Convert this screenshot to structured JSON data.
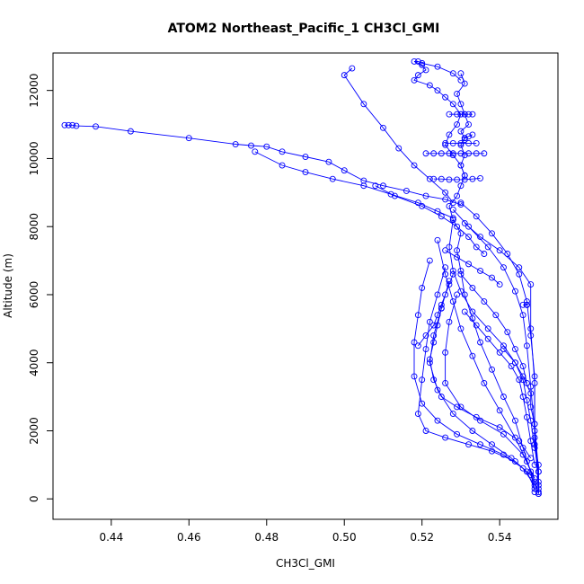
{
  "chart_data": {
    "type": "scatter",
    "title": "ATOM2 Northeast_Pacific_1 CH3Cl_GMI",
    "xlabel": "CH3Cl_GMI",
    "ylabel": "Altitude (m)",
    "xlim": [
      0.425,
      0.555
    ],
    "ylim": [
      -600,
      13100
    ],
    "x_ticks": [
      0.44,
      0.46,
      0.48,
      0.5,
      0.52,
      0.54
    ],
    "x_tick_labels": [
      "0.44",
      "0.46",
      "0.48",
      "0.50",
      "0.52",
      "0.54"
    ],
    "y_ticks": [
      0,
      2000,
      4000,
      6000,
      8000,
      10000,
      12000
    ],
    "y_tick_labels": [
      "0",
      "2000",
      "4000",
      "6000",
      "8000",
      "10000",
      "12000"
    ],
    "grid": false,
    "legend": "none",
    "point_style": "open-circle",
    "connected": true,
    "series_color": "#0000ff",
    "series": [
      {
        "x": [
          0.549,
          0.548,
          0.546,
          0.544,
          0.541,
          0.538,
          0.535,
          0.533,
          0.531,
          0.53,
          0.529,
          0.53,
          0.528,
          0.527,
          0.529,
          0.53,
          0.531,
          0.53,
          0.531,
          0.53,
          0.531,
          0.53,
          0.532,
          0.531,
          0.53,
          0.529,
          0.531,
          0.53
        ],
        "y": [
          200,
          800,
          1500,
          2300,
          3000,
          3800,
          4600,
          5300,
          6000,
          6700,
          7300,
          7800,
          8200,
          8600,
          8900,
          9200,
          9500,
          9800,
          10100,
          10400,
          10600,
          10800,
          11000,
          11300,
          11600,
          11900,
          12200,
          12500
        ]
      },
      {
        "x": [
          0.53,
          0.528,
          0.524,
          0.52,
          0.519,
          0.518,
          0.52,
          0.521,
          0.519,
          0.518,
          0.522,
          0.524,
          0.526,
          0.528,
          0.53,
          0.529,
          0.527,
          0.526,
          0.528,
          0.53,
          0.531
        ],
        "y": [
          12300,
          12500,
          12700,
          12800,
          12850,
          12850,
          12750,
          12600,
          12450,
          12300,
          12150,
          12000,
          11800,
          11600,
          11300,
          11000,
          10700,
          10400,
          10100,
          9800,
          9500
        ]
      },
      {
        "x": [
          0.502,
          0.5,
          0.505,
          0.51,
          0.514,
          0.518,
          0.522,
          0.526,
          0.528
        ],
        "y": [
          12650,
          12450,
          11600,
          10900,
          10300,
          9800,
          9400,
          9000,
          8700
        ]
      },
      {
        "x": [
          0.428,
          0.429,
          0.43,
          0.431,
          0.436,
          0.445,
          0.46,
          0.472,
          0.476,
          0.48,
          0.484,
          0.49,
          0.496,
          0.5,
          0.505,
          0.51,
          0.516,
          0.521,
          0.526,
          0.53
        ],
        "y": [
          10980,
          10980,
          10980,
          10960,
          10940,
          10800,
          10600,
          10420,
          10380,
          10350,
          10200,
          10050,
          9900,
          9650,
          9350,
          9200,
          9050,
          8900,
          8800,
          8650
        ]
      },
      {
        "x": [
          0.477,
          0.484,
          0.49,
          0.497,
          0.505,
          0.512,
          0.519,
          0.524,
          0.528
        ],
        "y": [
          10200,
          9800,
          9600,
          9400,
          9200,
          8950,
          8700,
          8450,
          8250
        ]
      },
      {
        "x": [
          0.508,
          0.513,
          0.52,
          0.525,
          0.529,
          0.532,
          0.534,
          0.536
        ],
        "y": [
          9200,
          8900,
          8600,
          8300,
          8000,
          7700,
          7400,
          7200
        ]
      },
      {
        "x": [
          0.521,
          0.523,
          0.525,
          0.527,
          0.528,
          0.53,
          0.532,
          0.534,
          0.536
        ],
        "y": [
          10150,
          10150,
          10150,
          10150,
          10150,
          10150,
          10150,
          10150,
          10150
        ]
      },
      {
        "x": [
          0.523,
          0.525,
          0.527,
          0.529,
          0.531,
          0.533,
          0.535
        ],
        "y": [
          9400,
          9400,
          9380,
          9380,
          9380,
          9400,
          9420
        ]
      },
      {
        "x": [
          0.526,
          0.528,
          0.53,
          0.532,
          0.534
        ],
        "y": [
          10450,
          10450,
          10450,
          10450,
          10450
        ]
      },
      {
        "x": [
          0.527,
          0.529,
          0.53,
          0.531,
          0.532,
          0.533
        ],
        "y": [
          11300,
          11300,
          11300,
          11300,
          11300,
          11300
        ]
      },
      {
        "x": [
          0.531,
          0.531,
          0.532,
          0.533
        ],
        "y": [
          10550,
          10600,
          10650,
          10700
        ]
      },
      {
        "x": [
          0.53,
          0.534,
          0.538,
          0.542,
          0.545,
          0.547,
          0.548,
          0.549,
          0.549,
          0.55
        ],
        "y": [
          8700,
          8300,
          7800,
          7200,
          6600,
          5800,
          4800,
          3600,
          2200,
          800
        ]
      },
      {
        "x": [
          0.528,
          0.532,
          0.537,
          0.541,
          0.544,
          0.546,
          0.547,
          0.548,
          0.549,
          0.55
        ],
        "y": [
          8500,
          8000,
          7400,
          6800,
          6100,
          5400,
          4500,
          3300,
          2000,
          400
        ]
      },
      {
        "x": [
          0.531,
          0.535,
          0.54,
          0.545,
          0.548,
          0.548,
          0.549,
          0.549,
          0.55
        ],
        "y": [
          8100,
          7700,
          7300,
          6800,
          6300,
          5000,
          3400,
          1800,
          300
        ]
      },
      {
        "x": [
          0.524,
          0.526,
          0.528,
          0.53,
          0.533,
          0.536,
          0.54,
          0.544,
          0.547,
          0.549
        ],
        "y": [
          7600,
          6600,
          5800,
          5000,
          4200,
          3400,
          2600,
          1800,
          1100,
          500
        ]
      },
      {
        "x": [
          0.522,
          0.52,
          0.519,
          0.518,
          0.518,
          0.52,
          0.524,
          0.529,
          0.535,
          0.541,
          0.546,
          0.549
        ],
        "y": [
          7000,
          6200,
          5400,
          4600,
          3600,
          2800,
          2300,
          1900,
          1600,
          1300,
          900,
          400
        ]
      },
      {
        "x": [
          0.526,
          0.524,
          0.522,
          0.521,
          0.52,
          0.519,
          0.521,
          0.526,
          0.532,
          0.538,
          0.544,
          0.548,
          0.55
        ],
        "y": [
          6800,
          6000,
          5200,
          4400,
          3500,
          2500,
          2000,
          1800,
          1600,
          1400,
          1100,
          700,
          200
        ]
      },
      {
        "x": [
          0.527,
          0.525,
          0.523,
          0.522,
          0.524,
          0.528,
          0.533,
          0.538,
          0.543,
          0.547,
          0.549
        ],
        "y": [
          6400,
          5600,
          4800,
          4000,
          3200,
          2500,
          2000,
          1600,
          1200,
          800,
          300
        ]
      },
      {
        "x": [
          0.529,
          0.527,
          0.526,
          0.526,
          0.53,
          0.535,
          0.541,
          0.546,
          0.549
        ],
        "y": [
          6000,
          5200,
          4300,
          3400,
          2700,
          2300,
          1900,
          1300,
          600
        ]
      },
      {
        "x": [
          0.53,
          0.533,
          0.536,
          0.539,
          0.542,
          0.544,
          0.546,
          0.547
        ],
        "y": [
          6600,
          6200,
          5800,
          5400,
          4900,
          4400,
          3900,
          3400
        ]
      },
      {
        "x": [
          0.531,
          0.534,
          0.537,
          0.54,
          0.543,
          0.545,
          0.546,
          0.547,
          0.548,
          0.549
        ],
        "y": [
          5500,
          5100,
          4700,
          4300,
          3900,
          3500,
          3000,
          2400,
          1700,
          1000
        ]
      },
      {
        "x": [
          0.546,
          0.547,
          0.547,
          0.547,
          0.547
        ],
        "y": [
          5700,
          5700,
          5700,
          5700,
          5700
        ]
      },
      {
        "x": [
          0.528,
          0.527,
          0.528,
          0.53,
          0.533,
          0.537,
          0.541,
          0.544,
          0.546,
          0.547,
          0.548,
          0.549,
          0.55,
          0.55
        ],
        "y": [
          8200,
          7400,
          6700,
          6100,
          5500,
          5000,
          4500,
          4000,
          3500,
          2900,
          2300,
          1500,
          800,
          150
        ]
      },
      {
        "x": [
          0.525,
          0.524,
          0.523,
          0.522,
          0.523,
          0.525,
          0.529,
          0.534,
          0.54,
          0.545,
          0.548
        ],
        "y": [
          5600,
          5100,
          4600,
          4100,
          3500,
          3000,
          2700,
          2400,
          2100,
          1700,
          1200
        ]
      },
      {
        "x": [
          0.526,
          0.529,
          0.532,
          0.535,
          0.538,
          0.54
        ],
        "y": [
          7300,
          7100,
          6900,
          6700,
          6500,
          6300
        ]
      },
      {
        "x": [
          0.519,
          0.521,
          0.523,
          0.524,
          0.525,
          0.526,
          0.527,
          0.528
        ],
        "y": [
          4500,
          4800,
          5100,
          5400,
          5700,
          6000,
          6300,
          6600
        ]
      },
      {
        "x": [
          0.541,
          0.544,
          0.546,
          0.548,
          0.548,
          0.549,
          0.549,
          0.55,
          0.55,
          0.55
        ],
        "y": [
          4400,
          4000,
          3600,
          3100,
          2700,
          2200,
          1600,
          1000,
          500,
          150
        ]
      }
    ]
  }
}
